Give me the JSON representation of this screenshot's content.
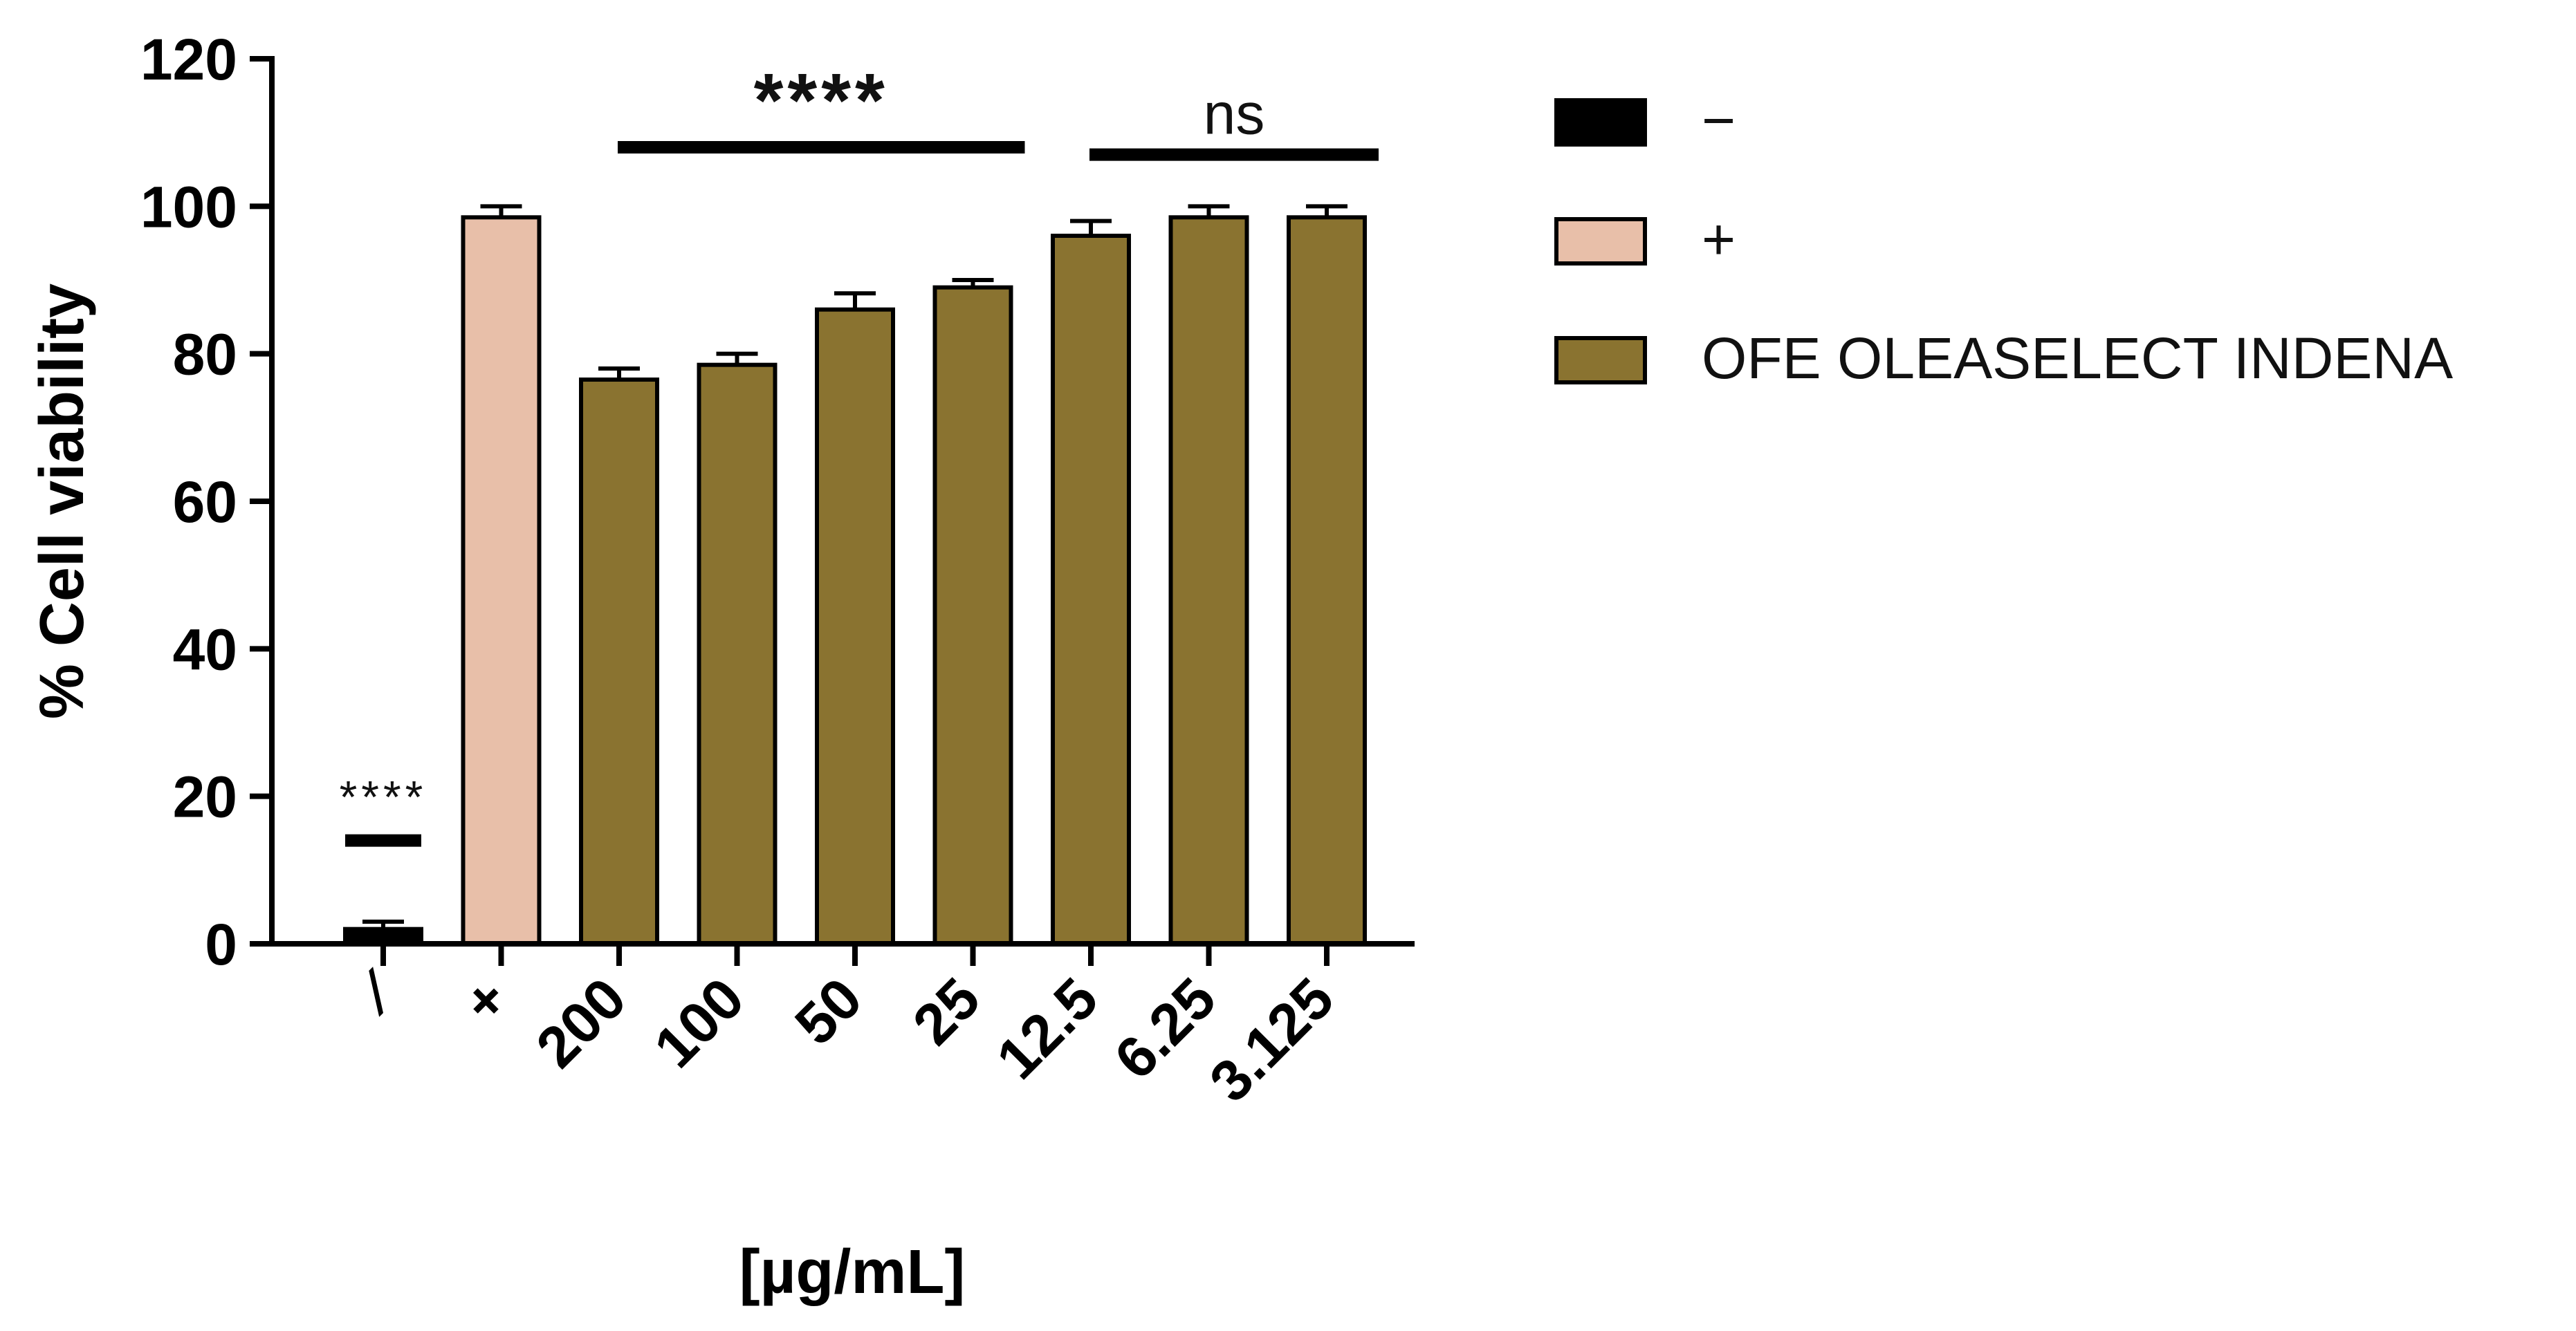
{
  "chart_data": {
    "type": "bar",
    "title": "",
    "xlabel": "[µg/mL]",
    "ylabel": "% Cell viability",
    "ylim": [
      0,
      120
    ],
    "yticks": [
      0,
      20,
      40,
      60,
      80,
      100,
      120
    ],
    "grid": false,
    "categories": [
      "⁄",
      "+",
      "200",
      "100",
      "50",
      "25",
      "12.5",
      "6.25",
      "3.125"
    ],
    "values": [
      2,
      98.5,
      76.5,
      78.5,
      86,
      89,
      96,
      98.5,
      98.5
    ],
    "errors": [
      1,
      1.5,
      1.5,
      1.5,
      2.2,
      1,
      2,
      1.5,
      1.5
    ],
    "bar_groups": [
      "neg",
      "pos",
      "ofe",
      "ofe",
      "ofe",
      "ofe",
      "ofe",
      "ofe",
      "ofe"
    ],
    "colors": {
      "neg": "#000000",
      "pos": "#e8bfa9",
      "ofe": "#8a7330"
    },
    "legend": {
      "position": "top-right",
      "items": [
        {
          "label": "−",
          "group": "neg"
        },
        {
          "label": "+",
          "group": "pos"
        },
        {
          "label": "OFE OLEASELECT INDENA",
          "group": "ofe"
        }
      ]
    },
    "annotations": [
      {
        "text": "****",
        "from": 0,
        "to": 0,
        "y": 14,
        "style": "small"
      },
      {
        "text": "****",
        "from": 2,
        "to": 5,
        "y": 108,
        "style": "large"
      },
      {
        "text": "ns",
        "from": 6,
        "to": 8,
        "y": 107,
        "style": "large"
      }
    ]
  }
}
